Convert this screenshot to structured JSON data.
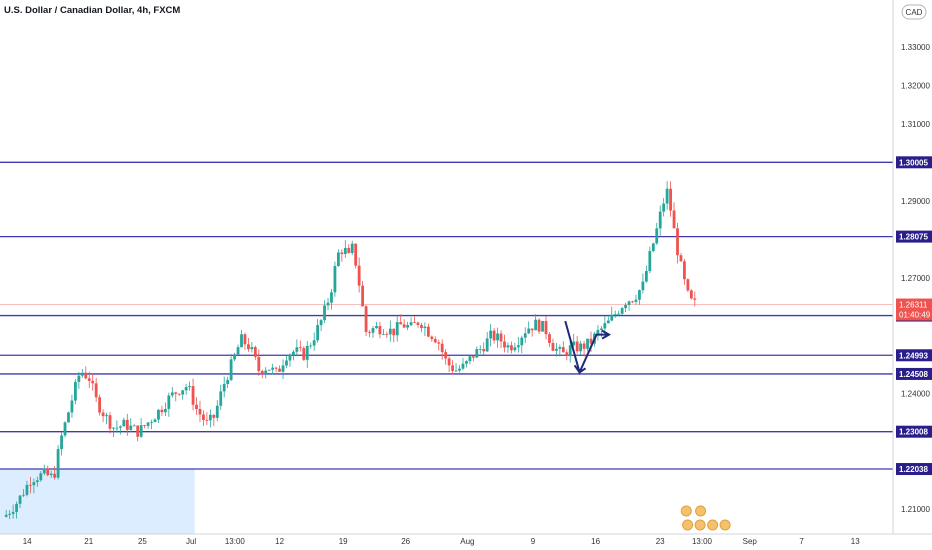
{
  "chart_data": {
    "type": "candlestick",
    "title": "U.S. Dollar / Canadian Dollar, 4h, FXCM",
    "currency": "CAD",
    "ylim": [
      1.2,
      1.345
    ],
    "y_ticks": [
      1.21,
      1.24,
      1.27,
      1.29,
      1.31,
      1.32,
      1.33
    ],
    "y_tick_labels": [
      "1.21000",
      "1.24000",
      "1.27000",
      "1.29000",
      "1.31000",
      "1.32000",
      "1.33000"
    ],
    "x_ticks": [
      {
        "label": "14",
        "pos": 0.0304
      },
      {
        "label": "21",
        "pos": 0.0994
      },
      {
        "label": "25",
        "pos": 0.1595
      },
      {
        "label": "Jul",
        "pos": 0.214
      },
      {
        "label": "13:00",
        "pos": 0.263
      },
      {
        "label": "12",
        "pos": 0.3131
      },
      {
        "label": "19",
        "pos": 0.3843
      },
      {
        "label": "26",
        "pos": 0.4543
      },
      {
        "label": "Aug",
        "pos": 0.5234
      },
      {
        "label": "9",
        "pos": 0.5969
      },
      {
        "label": "16",
        "pos": 0.667
      },
      {
        "label": "23",
        "pos": 0.7393
      },
      {
        "label": "13:00",
        "pos": 0.7861
      },
      {
        "label": "Sep",
        "pos": 0.8396
      },
      {
        "label": "7",
        "pos": 0.8976
      },
      {
        "label": "13",
        "pos": 0.9577
      }
    ],
    "horizontal_levels": [
      {
        "value": 1.30005,
        "label": "1.30005"
      },
      {
        "value": 1.28075,
        "label": "1.28075"
      },
      {
        "value": 1.26025,
        "label": "1.26025"
      },
      {
        "value": 1.24993,
        "label": "1.24993"
      },
      {
        "value": 1.24508,
        "label": "1.24508"
      },
      {
        "value": 1.23008,
        "label": "1.23008"
      },
      {
        "value": 1.22038,
        "label": "1.22038"
      }
    ],
    "current_price": {
      "value": 1.26311,
      "label": "1.26311",
      "countdown": "01:40:49"
    },
    "close_path": [
      [
        0.005,
        1.208
      ],
      [
        0.02,
        1.212
      ],
      [
        0.035,
        1.218
      ],
      [
        0.05,
        1.219
      ],
      [
        0.06,
        1.218
      ],
      [
        0.068,
        1.228
      ],
      [
        0.08,
        1.238
      ],
      [
        0.09,
        1.246
      ],
      [
        0.1,
        1.244
      ],
      [
        0.108,
        1.238
      ],
      [
        0.118,
        1.234
      ],
      [
        0.128,
        1.231
      ],
      [
        0.14,
        1.232
      ],
      [
        0.155,
        1.23
      ],
      [
        0.168,
        1.233
      ],
      [
        0.18,
        1.236
      ],
      [
        0.19,
        1.239
      ],
      [
        0.2,
        1.241
      ],
      [
        0.21,
        1.242
      ],
      [
        0.22,
        1.236
      ],
      [
        0.232,
        1.232
      ],
      [
        0.24,
        1.234
      ],
      [
        0.25,
        1.242
      ],
      [
        0.26,
        1.248
      ],
      [
        0.27,
        1.254
      ],
      [
        0.28,
        1.252
      ],
      [
        0.29,
        1.246
      ],
      [
        0.3,
        1.247
      ],
      [
        0.31,
        1.245
      ],
      [
        0.32,
        1.25
      ],
      [
        0.33,
        1.251
      ],
      [
        0.34,
        1.25
      ],
      [
        0.35,
        1.254
      ],
      [
        0.36,
        1.259
      ],
      [
        0.37,
        1.266
      ],
      [
        0.378,
        1.276
      ],
      [
        0.385,
        1.278
      ],
      [
        0.39,
        1.275
      ],
      [
        0.395,
        1.278
      ],
      [
        0.4,
        1.272
      ],
      [
        0.405,
        1.264
      ],
      [
        0.41,
        1.256
      ],
      [
        0.42,
        1.257
      ],
      [
        0.43,
        1.257
      ],
      [
        0.44,
        1.256
      ],
      [
        0.45,
        1.258
      ],
      [
        0.46,
        1.257
      ],
      [
        0.47,
        1.259
      ],
      [
        0.48,
        1.256
      ],
      [
        0.49,
        1.254
      ],
      [
        0.5,
        1.248
      ],
      [
        0.51,
        1.246
      ],
      [
        0.52,
        1.247
      ],
      [
        0.53,
        1.25
      ],
      [
        0.54,
        1.252
      ],
      [
        0.55,
        1.255
      ],
      [
        0.56,
        1.254
      ],
      [
        0.57,
        1.252
      ],
      [
        0.58,
        1.254
      ],
      [
        0.59,
        1.257
      ],
      [
        0.6,
        1.258
      ],
      [
        0.61,
        1.257
      ],
      [
        0.62,
        1.252
      ],
      [
        0.63,
        1.25
      ],
      [
        0.64,
        1.252
      ],
      [
        0.65,
        1.252
      ],
      [
        0.66,
        1.253
      ],
      [
        0.67,
        1.256
      ],
      [
        0.68,
        1.258
      ],
      [
        0.69,
        1.261
      ],
      [
        0.7,
        1.264
      ],
      [
        0.71,
        1.265
      ],
      [
        0.72,
        1.268
      ],
      [
        0.728,
        1.276
      ],
      [
        0.735,
        1.282
      ],
      [
        0.742,
        1.289
      ],
      [
        0.748,
        1.293
      ],
      [
        0.752,
        1.286
      ],
      [
        0.758,
        1.278
      ],
      [
        0.765,
        1.27
      ],
      [
        0.772,
        1.264
      ],
      [
        0.78,
        1.263
      ]
    ],
    "annotations": [
      {
        "type": "zigzag-arrow",
        "points": [
          [
            0.633,
            1.2588
          ],
          [
            0.649,
            1.2455
          ],
          [
            0.668,
            1.2553
          ],
          [
            0.682,
            1.2553
          ]
        ]
      },
      {
        "type": "shaded-range",
        "x": [
          0,
          0.218
        ],
        "y": [
          1.2035,
          1.22038
        ]
      }
    ],
    "grid": false,
    "legend": "none",
    "colors": {
      "up": "#26a69a",
      "down": "#ef5350",
      "level_line": "#3f3ab0",
      "level_label_bg": "#2a1f8a",
      "current_price": "#ef5350",
      "arrow": "#1e2a78",
      "shaded": "#d6eaff",
      "axis_text": "#333333"
    }
  }
}
